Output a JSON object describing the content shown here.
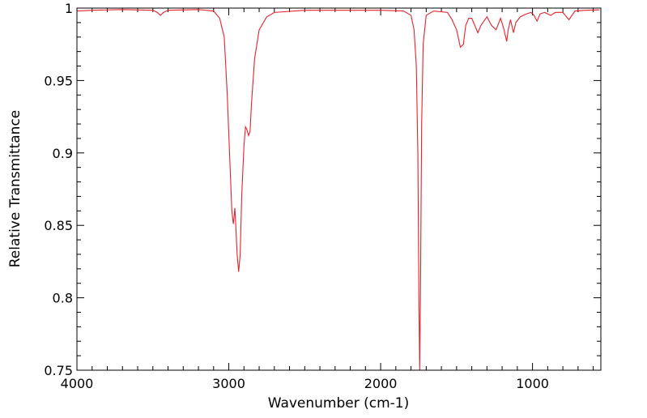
{
  "chart_data": {
    "type": "line",
    "xlabel": "Wavenumber (cm-1)",
    "ylabel": "Relative Transmittance",
    "xlim": [
      4000,
      550
    ],
    "ylim": [
      0.75,
      1.0
    ],
    "x_ticks": [
      {
        "value": 4000,
        "label": "4000"
      },
      {
        "value": 3000,
        "label": "3000"
      },
      {
        "value": 2000,
        "label": "2000"
      },
      {
        "value": 1000,
        "label": "1000"
      }
    ],
    "y_ticks": [
      {
        "value": 0.75,
        "label": "0.75"
      },
      {
        "value": 0.8,
        "label": "0.8"
      },
      {
        "value": 0.85,
        "label": "0.85"
      },
      {
        "value": 0.9,
        "label": "0.9"
      },
      {
        "value": 0.95,
        "label": "0.95"
      },
      {
        "value": 1.0,
        "label": "1"
      }
    ],
    "grid": false,
    "series": [
      {
        "color": "#e8212b",
        "points": [
          [
            4000,
            0.998
          ],
          [
            3900,
            0.9985
          ],
          [
            3700,
            0.999
          ],
          [
            3500,
            0.9985
          ],
          [
            3470,
            0.997
          ],
          [
            3450,
            0.995
          ],
          [
            3430,
            0.997
          ],
          [
            3400,
            0.9985
          ],
          [
            3200,
            0.999
          ],
          [
            3100,
            0.998
          ],
          [
            3060,
            0.993
          ],
          [
            3030,
            0.98
          ],
          [
            3010,
            0.94
          ],
          [
            2995,
            0.9
          ],
          [
            2980,
            0.86
          ],
          [
            2970,
            0.851
          ],
          [
            2965,
            0.856
          ],
          [
            2960,
            0.862
          ],
          [
            2955,
            0.852
          ],
          [
            2945,
            0.83
          ],
          [
            2935,
            0.818
          ],
          [
            2925,
            0.83
          ],
          [
            2915,
            0.87
          ],
          [
            2900,
            0.905
          ],
          [
            2890,
            0.918
          ],
          [
            2880,
            0.916
          ],
          [
            2870,
            0.912
          ],
          [
            2860,
            0.915
          ],
          [
            2850,
            0.935
          ],
          [
            2830,
            0.965
          ],
          [
            2800,
            0.985
          ],
          [
            2750,
            0.994
          ],
          [
            2700,
            0.997
          ],
          [
            2500,
            0.9985
          ],
          [
            2000,
            0.9985
          ],
          [
            1850,
            0.998
          ],
          [
            1800,
            0.995
          ],
          [
            1780,
            0.985
          ],
          [
            1765,
            0.96
          ],
          [
            1755,
            0.9
          ],
          [
            1748,
            0.8
          ],
          [
            1743,
            0.75
          ],
          [
            1738,
            0.8
          ],
          [
            1730,
            0.92
          ],
          [
            1720,
            0.975
          ],
          [
            1700,
            0.995
          ],
          [
            1650,
            0.998
          ],
          [
            1560,
            0.997
          ],
          [
            1530,
            0.992
          ],
          [
            1500,
            0.985
          ],
          [
            1475,
            0.973
          ],
          [
            1455,
            0.975
          ],
          [
            1440,
            0.988
          ],
          [
            1420,
            0.993
          ],
          [
            1400,
            0.993
          ],
          [
            1380,
            0.988
          ],
          [
            1360,
            0.983
          ],
          [
            1340,
            0.988
          ],
          [
            1300,
            0.994
          ],
          [
            1270,
            0.988
          ],
          [
            1240,
            0.985
          ],
          [
            1210,
            0.993
          ],
          [
            1190,
            0.986
          ],
          [
            1170,
            0.977
          ],
          [
            1160,
            0.985
          ],
          [
            1145,
            0.992
          ],
          [
            1125,
            0.983
          ],
          [
            1110,
            0.99
          ],
          [
            1080,
            0.994
          ],
          [
            1040,
            0.996
          ],
          [
            1010,
            0.997
          ],
          [
            990,
            0.995
          ],
          [
            970,
            0.991
          ],
          [
            950,
            0.996
          ],
          [
            920,
            0.997
          ],
          [
            880,
            0.995
          ],
          [
            850,
            0.997
          ],
          [
            800,
            0.997
          ],
          [
            760,
            0.992
          ],
          [
            720,
            0.998
          ],
          [
            650,
            0.9985
          ],
          [
            560,
            0.9988
          ]
        ]
      }
    ]
  }
}
